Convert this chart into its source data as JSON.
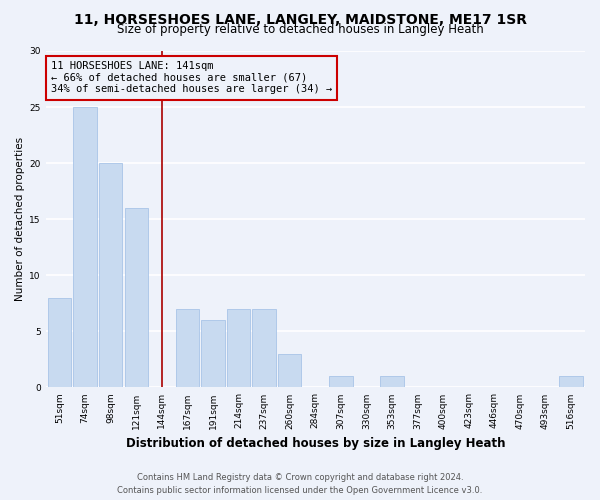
{
  "title": "11, HORSESHOES LANE, LANGLEY, MAIDSTONE, ME17 1SR",
  "subtitle": "Size of property relative to detached houses in Langley Heath",
  "xlabel": "Distribution of detached houses by size in Langley Heath",
  "ylabel": "Number of detached properties",
  "categories": [
    "51sqm",
    "74sqm",
    "98sqm",
    "121sqm",
    "144sqm",
    "167sqm",
    "191sqm",
    "214sqm",
    "237sqm",
    "260sqm",
    "284sqm",
    "307sqm",
    "330sqm",
    "353sqm",
    "377sqm",
    "400sqm",
    "423sqm",
    "446sqm",
    "470sqm",
    "493sqm",
    "516sqm"
  ],
  "values": [
    8,
    25,
    20,
    16,
    0,
    7,
    6,
    7,
    7,
    3,
    0,
    1,
    0,
    1,
    0,
    0,
    0,
    0,
    0,
    0,
    1
  ],
  "bar_color": "#c8daf0",
  "bar_edge_color": "#a8c4e8",
  "vline_x_index": 4,
  "vline_color": "#aa0000",
  "annotation_lines": [
    "11 HORSESHOES LANE: 141sqm",
    "← 66% of detached houses are smaller (67)",
    "34% of semi-detached houses are larger (34) →"
  ],
  "annotation_box_color": "#cc0000",
  "ylim": [
    0,
    30
  ],
  "yticks": [
    0,
    5,
    10,
    15,
    20,
    25,
    30
  ],
  "footer_line1": "Contains HM Land Registry data © Crown copyright and database right 2024.",
  "footer_line2": "Contains public sector information licensed under the Open Government Licence v3.0.",
  "background_color": "#eef2fa",
  "grid_color": "#ffffff",
  "title_fontsize": 10,
  "subtitle_fontsize": 8.5,
  "xlabel_fontsize": 8.5,
  "ylabel_fontsize": 7.5,
  "tick_fontsize": 6.5,
  "annotation_fontsize": 7.5,
  "footer_fontsize": 6.0
}
